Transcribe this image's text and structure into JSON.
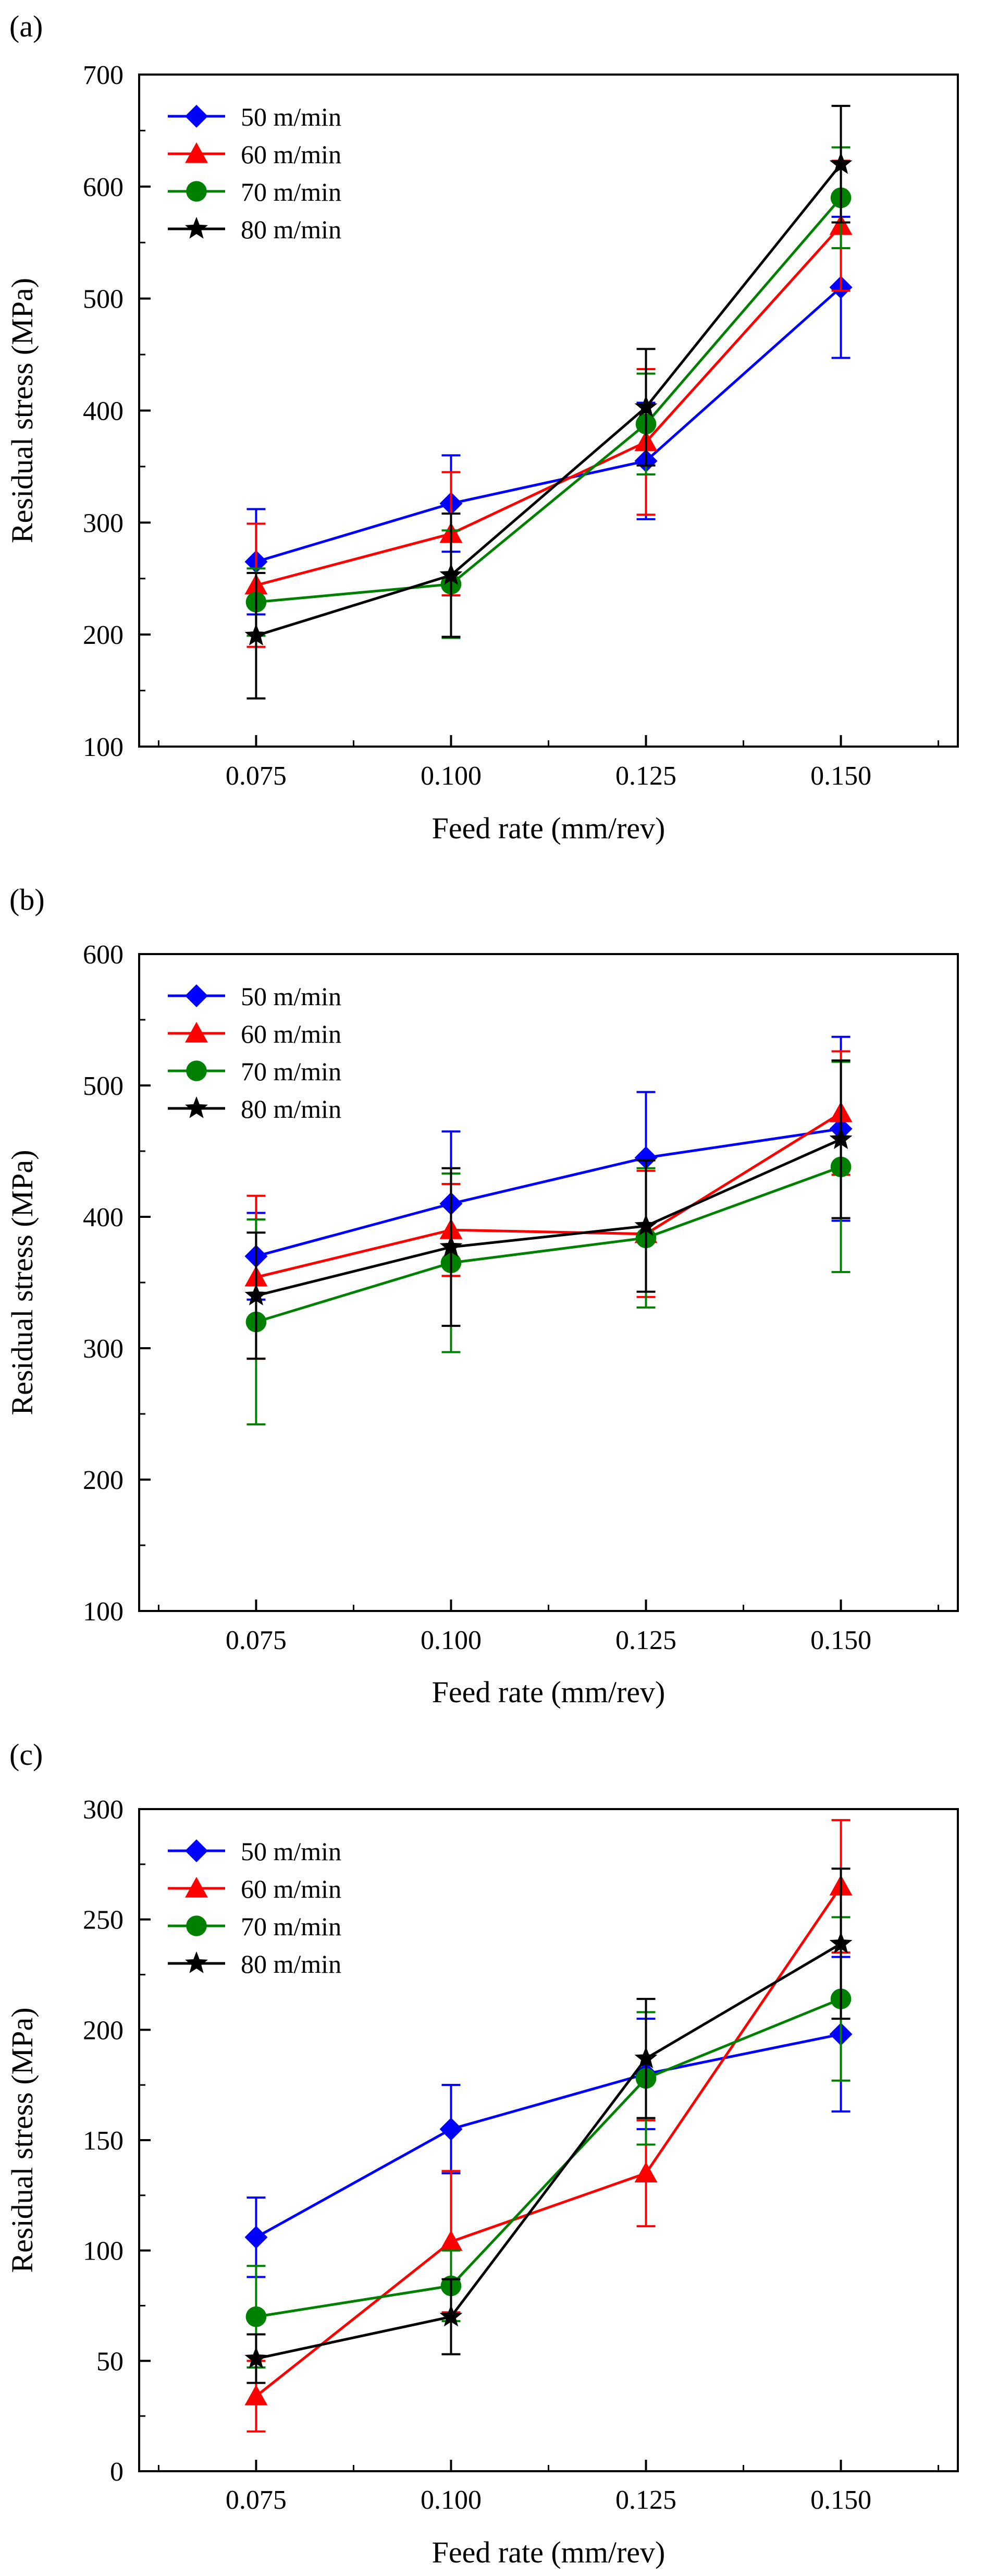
{
  "figure": {
    "xlabel": "Feed rate (mm/rev)",
    "ylabel": "Residual stress (MPa)"
  },
  "series_style": {
    "50 m/min": {
      "color": "#0000ff",
      "marker": "diamond"
    },
    "60 m/min": {
      "color": "#ff0000",
      "marker": "triangle"
    },
    "70 m/min": {
      "color": "#008000",
      "marker": "circle"
    },
    "80 m/min": {
      "color": "#000000",
      "marker": "star"
    }
  },
  "chart_data": [
    {
      "panel": "(a)",
      "type": "line",
      "x": [
        0.075,
        0.1,
        0.125,
        0.15
      ],
      "x_tick_labels": [
        "0.075",
        "0.100",
        "0.125",
        "0.150"
      ],
      "xlim": [
        0.06,
        0.165
      ],
      "ylim": [
        100,
        700
      ],
      "y_ticks": [
        100,
        200,
        300,
        400,
        500,
        600,
        700
      ],
      "xlabel": "Feed rate (mm/rev)",
      "ylabel": "Residual stress (MPa)",
      "legend": "top-left",
      "series": [
        {
          "name": "50 m/min",
          "values": [
            265,
            317,
            355,
            510
          ],
          "errors": [
            47,
            43,
            52,
            63
          ]
        },
        {
          "name": "60 m/min",
          "values": [
            244,
            290,
            372,
            565
          ],
          "errors": [
            55,
            55,
            65,
            58
          ]
        },
        {
          "name": "70 m/min",
          "values": [
            229,
            245,
            388,
            590
          ],
          "errors": [
            30,
            48,
            45,
            45
          ]
        },
        {
          "name": "80 m/min",
          "values": [
            199,
            253,
            403,
            620
          ],
          "errors": [
            56,
            55,
            52,
            52
          ]
        }
      ]
    },
    {
      "panel": "(b)",
      "type": "line",
      "x": [
        0.075,
        0.1,
        0.125,
        0.15
      ],
      "x_tick_labels": [
        "0.075",
        "0.100",
        "0.125",
        "0.150"
      ],
      "xlim": [
        0.06,
        0.165
      ],
      "ylim": [
        100,
        600
      ],
      "y_ticks": [
        100,
        200,
        300,
        400,
        500,
        600
      ],
      "xlabel": "Feed rate (mm/rev)",
      "ylabel": "Residual stress (MPa)",
      "legend": "top-left",
      "series": [
        {
          "name": "50 m/min",
          "values": [
            370,
            410,
            445,
            467
          ],
          "errors": [
            33,
            55,
            50,
            70
          ]
        },
        {
          "name": "60 m/min",
          "values": [
            354,
            390,
            387,
            479
          ],
          "errors": [
            62,
            35,
            48,
            47
          ]
        },
        {
          "name": "70 m/min",
          "values": [
            320,
            365,
            384,
            438
          ],
          "errors": [
            78,
            68,
            53,
            80
          ]
        },
        {
          "name": "80 m/min",
          "values": [
            340,
            377,
            393,
            459
          ],
          "errors": [
            48,
            60,
            50,
            60
          ]
        }
      ]
    },
    {
      "panel": "(c)",
      "type": "line",
      "x": [
        0.075,
        0.1,
        0.125,
        0.15
      ],
      "x_tick_labels": [
        "0.075",
        "0.100",
        "0.125",
        "0.150"
      ],
      "xlim": [
        0.06,
        0.165
      ],
      "ylim": [
        0,
        300
      ],
      "y_ticks": [
        0,
        50,
        100,
        150,
        200,
        250,
        300
      ],
      "xlabel": "Feed rate (mm/rev)",
      "ylabel": "Residual stress (MPa)",
      "legend": "top-left",
      "series": [
        {
          "name": "50 m/min",
          "values": [
            106,
            155,
            180,
            198
          ],
          "errors": [
            18,
            20,
            25,
            35
          ]
        },
        {
          "name": "60 m/min",
          "values": [
            34,
            104,
            135,
            265
          ],
          "errors": [
            16,
            32,
            24,
            30
          ]
        },
        {
          "name": "70 m/min",
          "values": [
            70,
            84,
            178,
            214
          ],
          "errors": [
            23,
            16,
            30,
            37
          ]
        },
        {
          "name": "80 m/min",
          "values": [
            51,
            70,
            187,
            239
          ],
          "errors": [
            11,
            17,
            27,
            34
          ]
        }
      ]
    }
  ]
}
